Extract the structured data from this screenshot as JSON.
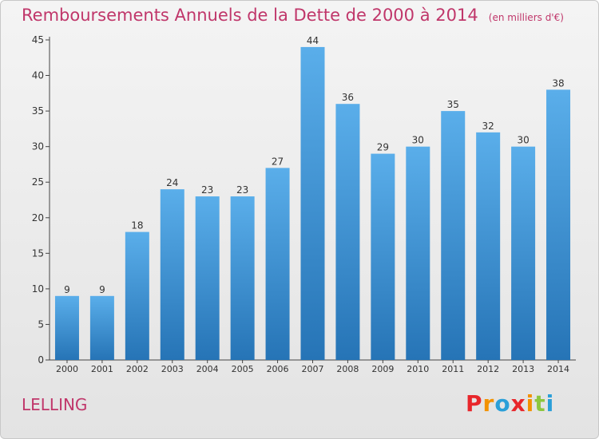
{
  "header": {
    "title": "Remboursements Annuels de la Dette de 2000 à 2014",
    "unit": "(en milliers d'€)"
  },
  "footer": {
    "town": "LELLING",
    "brand": "Proxiti",
    "brand_colors": [
      "#e8262b",
      "#f39200",
      "#2a9fd8",
      "#e8262b",
      "#f39200",
      "#8dc63f",
      "#2a9fd8"
    ]
  },
  "colors": {
    "bar_top": "#5aaeea",
    "bar_bottom": "#2674b6",
    "accent": "#c0366a"
  },
  "chart_data": {
    "type": "bar",
    "title": "Remboursements Annuels de la Dette de 2000 à 2014",
    "xlabel": "",
    "ylabel": "",
    "ylim": [
      0,
      45
    ],
    "yticks": [
      0,
      5,
      10,
      15,
      20,
      25,
      30,
      35,
      40,
      45
    ],
    "grid": false,
    "categories": [
      "2000",
      "2001",
      "2002",
      "2003",
      "2004",
      "2005",
      "2006",
      "2007",
      "2008",
      "2009",
      "2010",
      "2011",
      "2012",
      "2013",
      "2014"
    ],
    "values": [
      9,
      9,
      18,
      24,
      23,
      23,
      27,
      44,
      36,
      29,
      30,
      35,
      32,
      30,
      38
    ]
  }
}
